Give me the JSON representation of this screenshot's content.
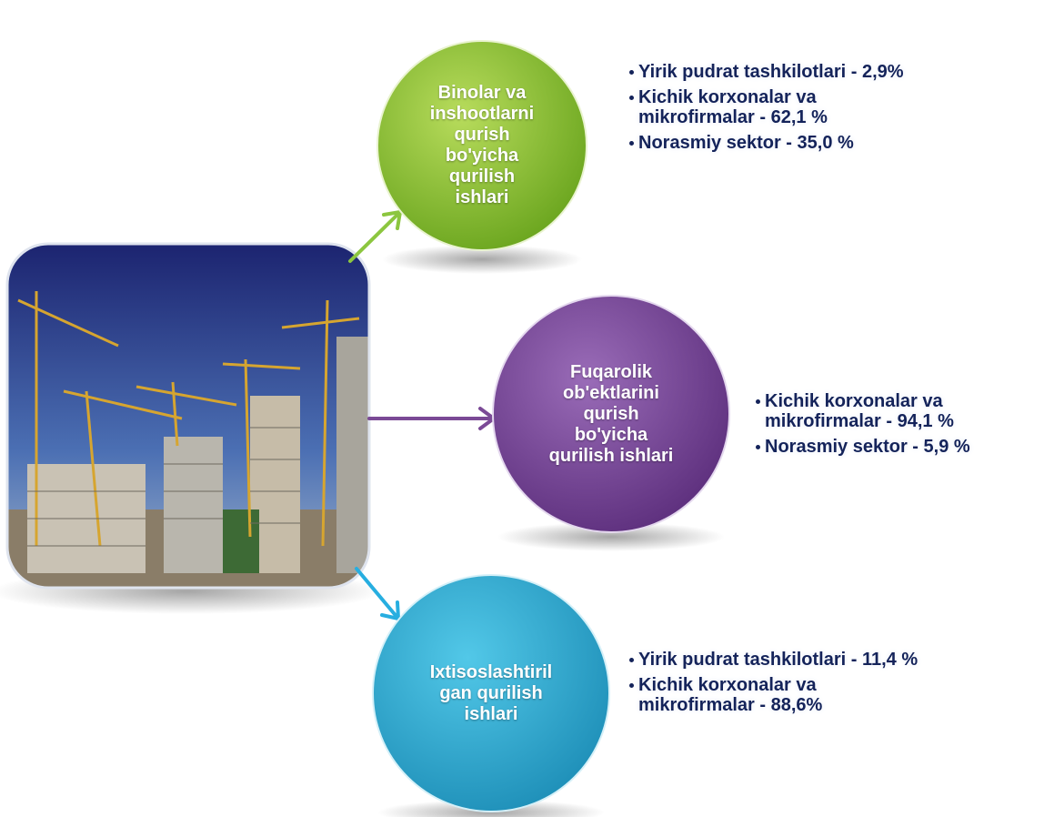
{
  "nodes": [
    {
      "label": [
        "Binolar va",
        "inshootlarni",
        "qurish",
        "bo'yicha",
        "qurilish",
        "ishlari"
      ],
      "items": [
        "Yirik pudrat tashkilotlari - 2,9%",
        "Kichik korxonalar va mikrofirmalar - 62,1 %",
        "Norasmiy sektor - 35,0 %"
      ]
    },
    {
      "label": [
        "Fuqarolik",
        "ob'ektlarini",
        "qurish",
        "bo'yicha",
        "qurilish ishlari"
      ],
      "items": [
        "Kichik korxonalar va mikrofirmalar - 94,1 %",
        "Norasmiy sektor - 5,9 %"
      ]
    },
    {
      "label": [
        "Ixtisoslashtiril",
        "gan qurilish",
        "ishlari"
      ],
      "items": [
        "Yirik pudrat tashkilotlari - 11,4 %",
        "Kichik korxonalar va mikrofirmalar - 88,6%"
      ]
    }
  ]
}
